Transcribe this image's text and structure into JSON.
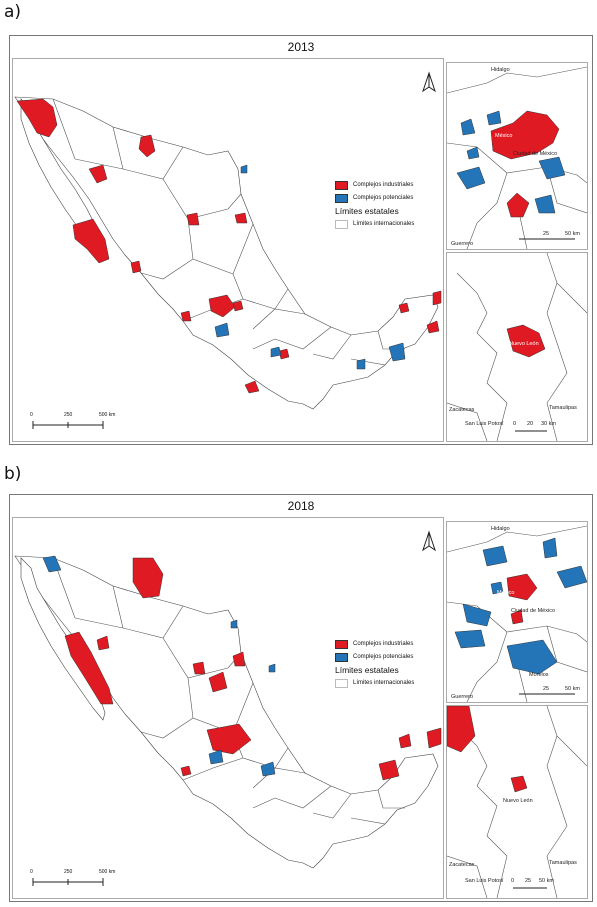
{
  "panels": [
    {
      "label": "a)",
      "year": "2013",
      "legend": {
        "industrial": "Complejos industriales",
        "potential": "Complejos potenciales",
        "states_title": "Límites estatales",
        "international": "Límites internacionales"
      },
      "scale": {
        "zero": "0",
        "mid": "250",
        "end": "500 km"
      },
      "inset_top": {
        "hidalgo": "Hidalgo",
        "mexico": "México",
        "cdmx": "Ciudad de México",
        "morelos": "Morelos",
        "guerrero": "Guerrero",
        "scale_mid": "25",
        "scale_end": "50 km"
      },
      "inset_bottom": {
        "nuevo_leon": "Nuevo León",
        "zacatecas": "Zacatecas",
        "san_luis": "San Luis Potosí",
        "tamaulipas": "Tamaulipas",
        "scale_zero": "0",
        "scale_mid": "20",
        "scale_end": "30 km"
      }
    },
    {
      "label": "b)",
      "year": "2018",
      "legend": {
        "industrial": "Complejos industriales",
        "potential": "Complejos potenciales",
        "states_title": "Límites estatales",
        "international": "Límites internacionales"
      },
      "scale": {
        "zero": "0",
        "mid": "250",
        "end": "500 km"
      },
      "inset_top": {
        "hidalgo": "Hidalgo",
        "mexico": "México",
        "cdmx": "Ciudad de México",
        "morelos": "Morelos",
        "guerrero": "Guerrero",
        "scale_mid": "25",
        "scale_end": "50 km"
      },
      "inset_bottom": {
        "nuevo_leon": "Nuevo León",
        "zacatecas": "Zacatecas",
        "san_luis": "San Luis Potosí",
        "tamaulipas": "Tamaulipas",
        "scale_zero": "0",
        "scale_mid": "25",
        "scale_end": "50 km"
      }
    }
  ],
  "colors": {
    "industrial": "#e01a22",
    "potential": "#2475b8"
  },
  "icons": {
    "north_arrow": "north-arrow-icon"
  }
}
